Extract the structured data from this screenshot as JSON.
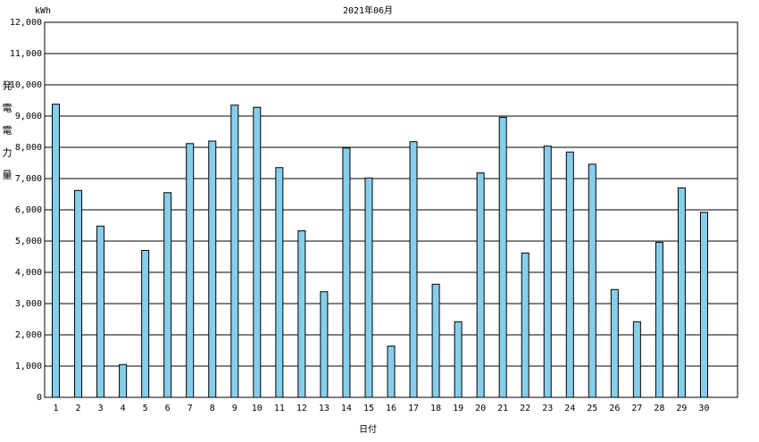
{
  "chart_data": {
    "type": "bar",
    "title": "2021年06月",
    "unit": "kWh",
    "ylabel": "発電電力量",
    "xlabel": "日付",
    "categories": [
      "1",
      "2",
      "3",
      "4",
      "5",
      "6",
      "7",
      "8",
      "9",
      "10",
      "11",
      "12",
      "13",
      "14",
      "15",
      "16",
      "17",
      "18",
      "19",
      "20",
      "21",
      "22",
      "23",
      "24",
      "25",
      "26",
      "27",
      "28",
      "29",
      "30"
    ],
    "values": [
      9380,
      6620,
      5480,
      1050,
      4700,
      6550,
      8120,
      8200,
      9350,
      9280,
      7350,
      5330,
      3380,
      7980,
      7020,
      1640,
      8180,
      3620,
      2420,
      7180,
      8960,
      4620,
      8040,
      7850,
      7460,
      3450,
      2420,
      4960,
      6700,
      5920
    ],
    "color": "#87ceeb",
    "ylim": [
      0,
      12000
    ],
    "yticks": [
      0,
      {
        "value": 1000,
        "label": "1,000"
      },
      {
        "value": 2000,
        "label": "2,000"
      },
      {
        "value": 3000,
        "label": "3,000"
      },
      {
        "value": 4000,
        "label": "4,000"
      },
      {
        "value": 5000,
        "label": "5,000"
      },
      {
        "value": 6000,
        "label": "6,000"
      },
      {
        "value": 7000,
        "label": "7,000"
      },
      {
        "value": 8000,
        "label": "8,000"
      },
      {
        "value": 9000,
        "label": "9,000"
      },
      {
        "value": 10000,
        "label": "10,000"
      },
      {
        "value": 11000,
        "label": "11,000"
      },
      {
        "value": 12000,
        "label": "12,000"
      }
    ],
    "grid": true
  }
}
